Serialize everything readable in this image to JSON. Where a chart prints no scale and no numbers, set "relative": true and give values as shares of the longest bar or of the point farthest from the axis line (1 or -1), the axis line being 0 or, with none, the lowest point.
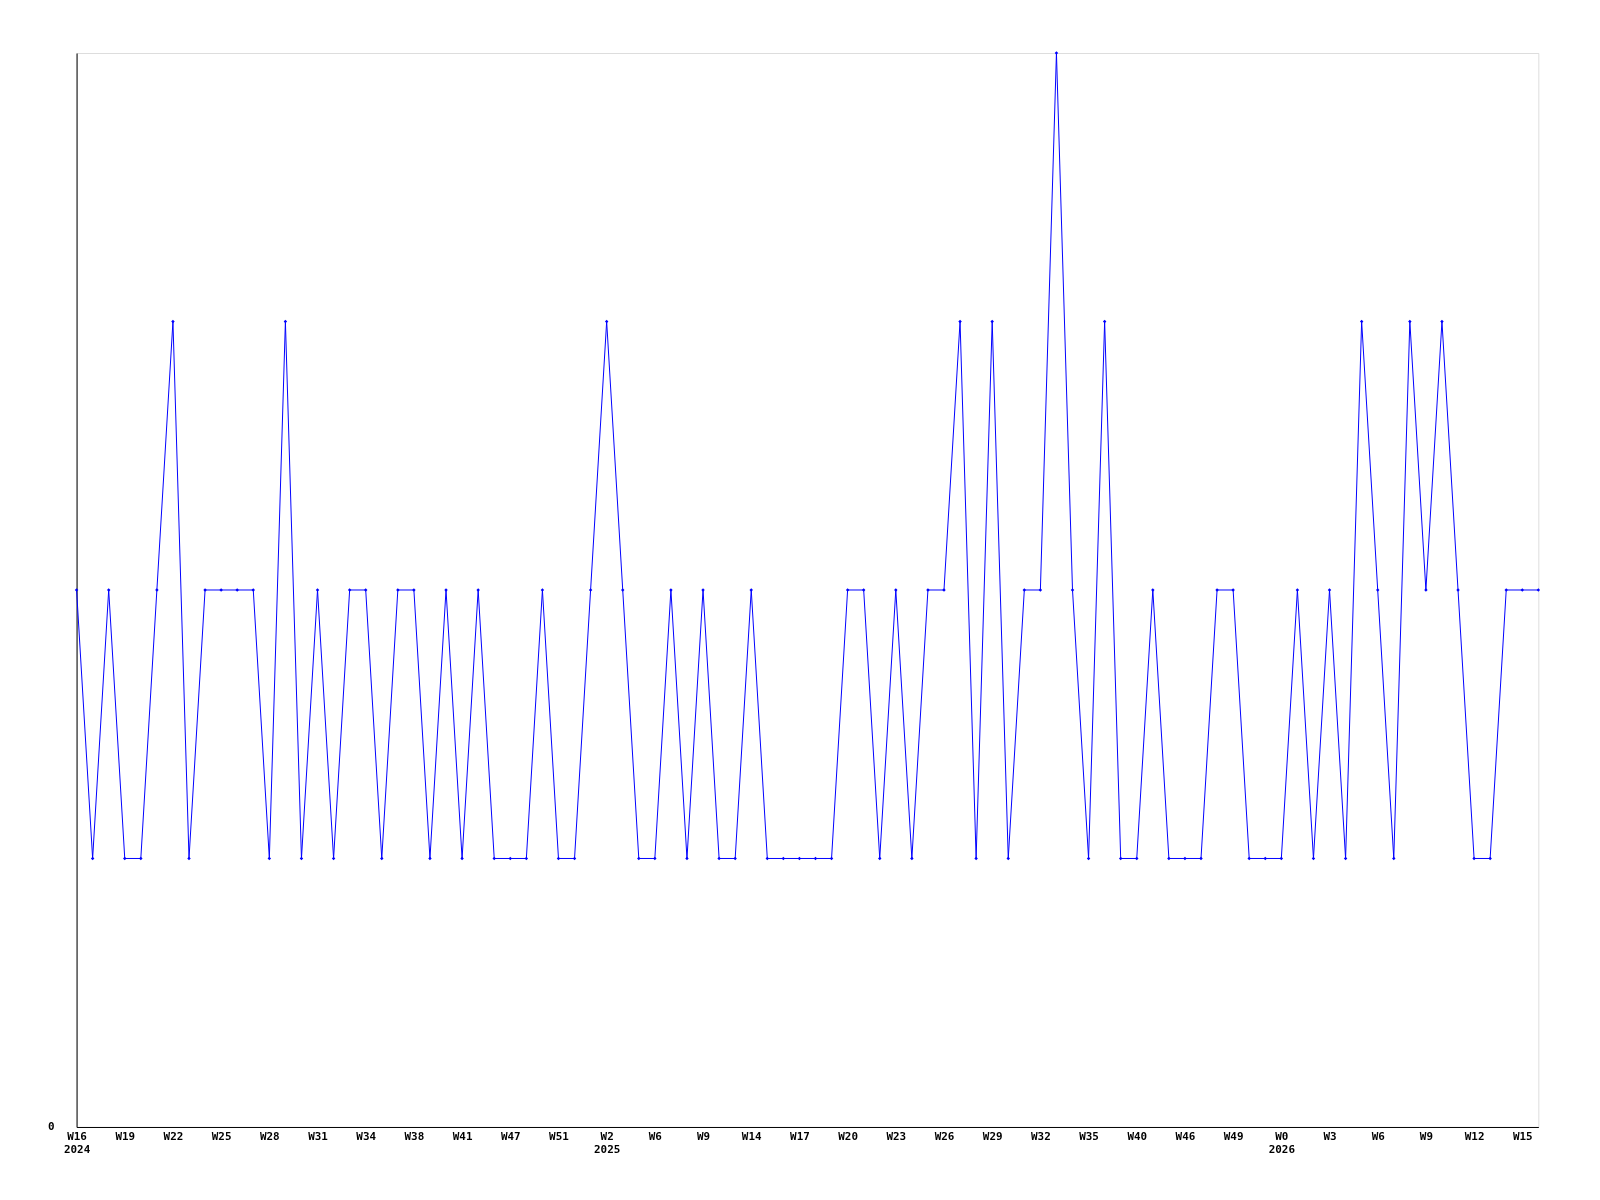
{
  "chart_data": {
    "type": "line",
    "relative": true,
    "marker": "diamond",
    "line_style": "solid",
    "grid": false,
    "annotations": [
      "0"
    ],
    "categories": [
      "W16\n2024",
      null,
      null,
      "W19",
      null,
      null,
      "W22",
      null,
      null,
      "W25",
      null,
      null,
      "W28",
      null,
      null,
      "W31",
      null,
      null,
      "W34",
      null,
      null,
      "W38",
      null,
      null,
      "W41",
      null,
      null,
      "W47",
      null,
      null,
      "W51",
      null,
      null,
      "W2\n2025",
      null,
      null,
      "W6",
      null,
      null,
      "W9",
      null,
      null,
      "W14",
      null,
      null,
      "W17",
      null,
      null,
      "W20",
      null,
      null,
      "W23",
      null,
      null,
      "W26",
      null,
      null,
      "W29",
      null,
      null,
      "W32",
      null,
      null,
      "W35",
      null,
      null,
      "W40",
      null,
      null,
      "W46",
      null,
      null,
      "W49",
      null,
      null,
      "W0\n2026",
      null,
      null,
      "W3",
      null,
      null,
      "W6",
      null,
      null,
      "W9",
      null,
      null,
      "W12",
      null,
      null,
      "W15",
      null
    ],
    "series": [
      {
        "color": "#0000ff",
        "values": [
          0.5,
          0.25,
          0.5,
          0.25,
          0.25,
          0.5,
          0.75,
          0.25,
          0.5,
          0.5,
          0.5,
          0.5,
          0.25,
          0.75,
          0.25,
          0.5,
          0.25,
          0.5,
          0.5,
          0.25,
          0.5,
          0.5,
          0.25,
          0.5,
          0.25,
          0.5,
          0.25,
          0.25,
          0.25,
          0.5,
          0.25,
          0.25,
          0.5,
          0.75,
          0.5,
          0.25,
          0.25,
          0.5,
          0.25,
          0.5,
          0.25,
          0.25,
          0.5,
          0.25,
          0.25,
          0.25,
          0.25,
          0.25,
          0.5,
          0.5,
          0.25,
          0.5,
          0.25,
          0.5,
          0.5,
          0.75,
          0.25,
          0.75,
          0.25,
          0.5,
          0.5,
          1,
          0.5,
          0.25,
          0.75,
          0.25,
          0.25,
          0.5,
          0.25,
          0.25,
          0.25,
          0.5,
          0.5,
          0.25,
          0.25,
          0.25,
          0.5,
          0.25,
          0.5,
          0.25,
          0.75,
          0.5,
          0.25,
          0.75,
          0.5,
          0.75,
          0.5,
          0.25,
          0.25,
          0.5,
          0.5,
          0.5
        ]
      }
    ]
  }
}
